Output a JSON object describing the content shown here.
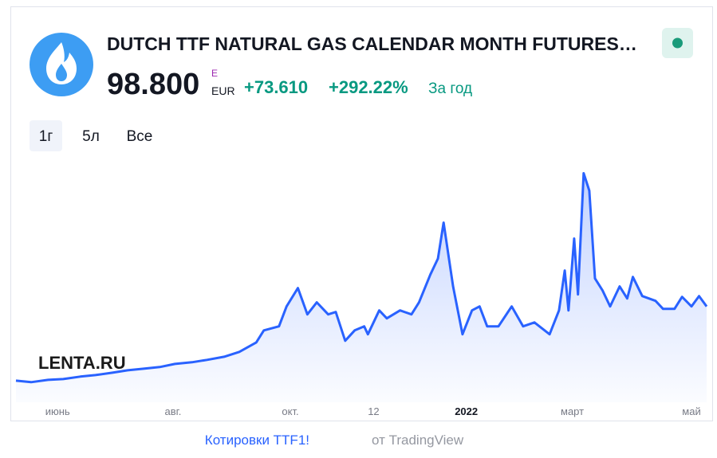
{
  "chart_data": {
    "type": "line",
    "title": "DUTCH TTF NATURAL GAS CALENDAR MONTH FUTURES…",
    "price": "98.800",
    "currency_symbol": "E",
    "currency": "EUR",
    "change": "+73.610",
    "change_percent": "+292.22%",
    "period": "За год",
    "ranges": [
      "1г",
      "5л",
      "Все"
    ],
    "watermark": "LENTA.RU",
    "footer_link": "Котировки TTF1!",
    "footer_source": "от TradingView",
    "color": "#2962ff",
    "x": [
      0,
      8,
      17,
      25,
      34,
      42,
      51,
      59,
      68,
      76,
      84,
      93,
      101,
      110,
      118,
      127,
      131,
      139,
      143,
      149,
      154,
      159,
      165,
      169,
      174,
      179,
      184,
      186,
      192,
      196,
      203,
      209,
      213,
      219,
      223,
      226,
      231,
      236,
      241,
      245,
      249,
      255,
      262,
      268,
      274,
      282,
      287,
      290,
      292,
      295,
      297,
      300,
      303,
      306,
      310,
      314,
      319,
      323,
      326,
      331,
      338,
      342,
      348,
      352,
      357,
      361,
      365
    ],
    "values": [
      25.3,
      23.8,
      26.1,
      26.9,
      29.3,
      30.8,
      33.2,
      35.6,
      37.2,
      38.8,
      41.9,
      43.5,
      45.9,
      49.0,
      53.8,
      63.2,
      75.1,
      79.1,
      98.8,
      117.0,
      90.9,
      102.8,
      90.9,
      93.3,
      64.8,
      75.1,
      79.1,
      71.2,
      94.9,
      87.0,
      94.9,
      90.9,
      102.8,
      130.4,
      146.2,
      181.8,
      118.6,
      71.2,
      94.9,
      98.8,
      79.1,
      79.1,
      98.8,
      79.1,
      83.0,
      71.2,
      94.9,
      134.4,
      94.9,
      166.0,
      110.7,
      230.7,
      213.4,
      126.5,
      114.6,
      98.8,
      118.6,
      106.7,
      128.0,
      109.1,
      104.3,
      96.4,
      96.4,
      108.3,
      98.8,
      109.1,
      98.8
    ],
    "xlim": [
      0,
      365
    ],
    "ylim": [
      0,
      250
    ],
    "xticks": [
      {
        "value": 22,
        "label": "июнь"
      },
      {
        "value": 83,
        "label": "авг."
      },
      {
        "value": 145,
        "label": "окт."
      },
      {
        "value": 189,
        "label": "12"
      },
      {
        "value": 238,
        "label": "2022"
      },
      {
        "value": 294,
        "label": "март"
      },
      {
        "value": 357,
        "label": "май"
      }
    ]
  }
}
